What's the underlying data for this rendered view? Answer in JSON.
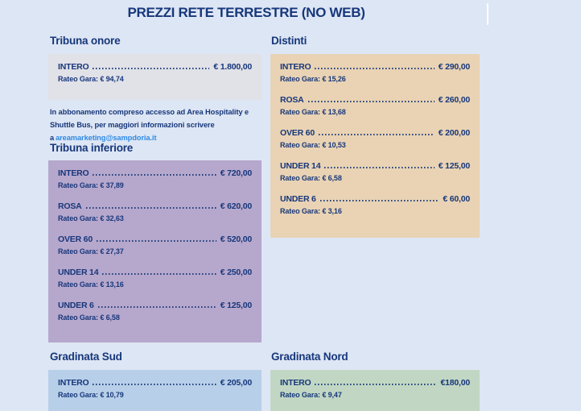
{
  "page": {
    "title": "PREZZI RETE TERRESTRE (NO WEB)"
  },
  "colors": {
    "background": "#dde6f4",
    "text_navy": "#17377b",
    "link_blue": "#2e8ae6",
    "scrollbar_thumb": "#ffffff",
    "box_tribuna_onore": "#e1e1e8",
    "box_tribuna_inferiore": "#b6a7cc",
    "box_distinti": "#e9d3b4",
    "box_gradinata_sud": "#b8cfe9",
    "box_gradinata_nord": "#c1d7c3"
  },
  "note": {
    "text": "In abbonamento compreso accesso ad Area Hospitality e Shuttle Bus, per maggiori informazioni scrivere a",
    "link_label": "areamarketing@sampdoria.it"
  },
  "sections": {
    "tribuna_onore": {
      "title": "Tribuna onore",
      "box_color": "#e1e1e8",
      "rows": [
        {
          "label": "INTERO",
          "price": "€ 1.800,00",
          "rateo": "Rateo Gara: € 94,74"
        }
      ]
    },
    "tribuna_inferiore": {
      "title": "Tribuna inferiore",
      "box_color": "#b6a7cc",
      "rows": [
        {
          "label": "INTERO",
          "price": "€ 720,00",
          "rateo": "Rateo Gara: € 37,89"
        },
        {
          "label": "ROSA",
          "price": "€ 620,00",
          "rateo": "Rateo Gara: € 32,63"
        },
        {
          "label": "OVER 60",
          "price": "€ 520,00",
          "rateo": "Rateo Gara: € 27,37"
        },
        {
          "label": "UNDER 14",
          "price": "€ 250,00",
          "rateo": "Rateo Gara: € 13,16"
        },
        {
          "label": "UNDER 6",
          "price": "€ 125,00",
          "rateo": "Rateo Gara: € 6,58"
        }
      ]
    },
    "distinti": {
      "title": "Distinti",
      "box_color": "#e9d3b4",
      "rows": [
        {
          "label": "INTERO",
          "price": "€ 290,00",
          "rateo": "Rateo Gara: € 15,26"
        },
        {
          "label": "ROSA",
          "price": "€ 260,00",
          "rateo": "Rateo Gara: € 13,68"
        },
        {
          "label": "OVER 60",
          "price": "€ 200,00",
          "rateo": "Rateo Gara: € 10,53"
        },
        {
          "label": "UNDER 14",
          "price": "€ 125,00",
          "rateo": "Rateo Gara: € 6,58"
        },
        {
          "label": "UNDER 6",
          "price": "€ 60,00",
          "rateo": "Rateo Gara: € 3,16"
        }
      ]
    },
    "gradinata_sud": {
      "title": "Gradinata Sud",
      "box_color": "#b8cfe9",
      "rows": [
        {
          "label": "INTERO",
          "price": "€ 205,00",
          "rateo": "Rateo Gara: € 10,79"
        }
      ]
    },
    "gradinata_nord": {
      "title": "Gradinata Nord",
      "box_color": "#c1d7c3",
      "rows": [
        {
          "label": "INTERO",
          "price": "€180,00",
          "rateo": "Rateo Gara: € 9,47"
        }
      ]
    }
  }
}
